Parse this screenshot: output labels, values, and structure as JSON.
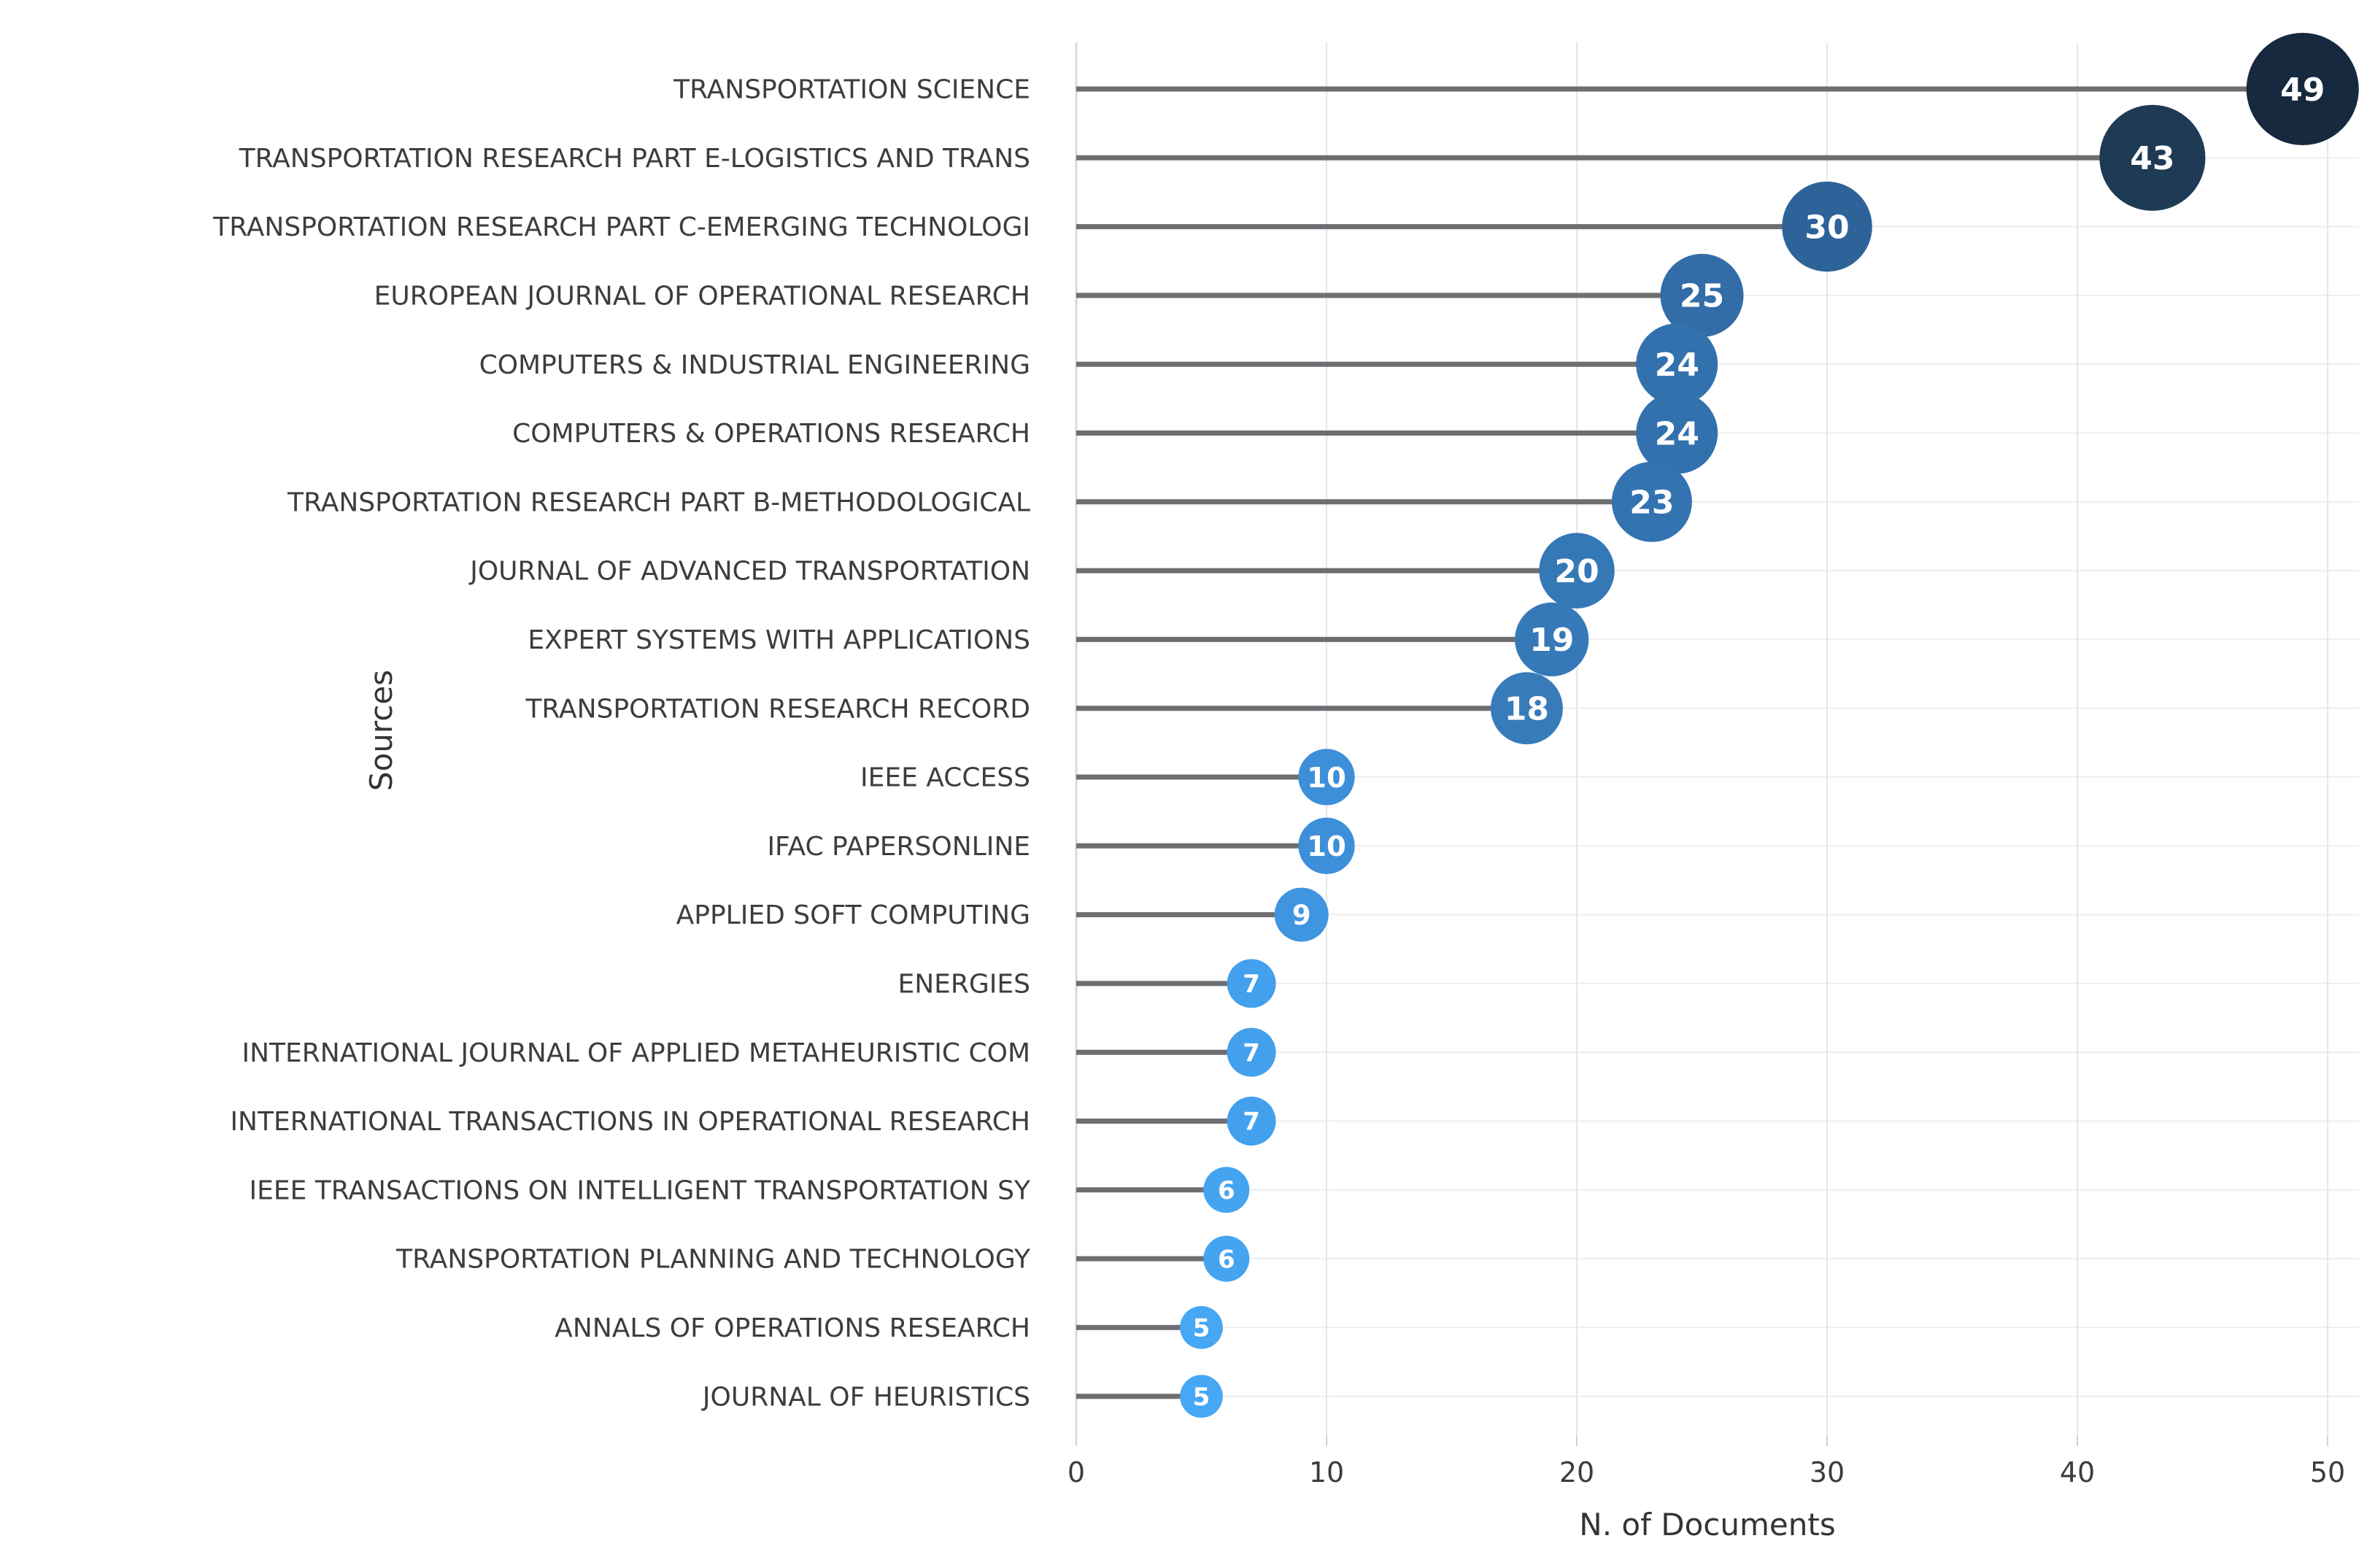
{
  "chart_data": {
    "type": "bar",
    "variant": "horizontal-lollipop-bubble",
    "title": "",
    "xlabel": "N. of Documents",
    "ylabel": "Sources",
    "xlim": [
      0,
      50
    ],
    "xticks": [
      0,
      10,
      20,
      30,
      40,
      50
    ],
    "grid": true,
    "legend": "none",
    "categories": [
      "TRANSPORTATION SCIENCE",
      "TRANSPORTATION RESEARCH PART E-LOGISTICS AND TRANS",
      "TRANSPORTATION RESEARCH PART C-EMERGING TECHNOLOGI",
      "EUROPEAN JOURNAL OF OPERATIONAL RESEARCH",
      "COMPUTERS & INDUSTRIAL ENGINEERING",
      "COMPUTERS & OPERATIONS RESEARCH",
      "TRANSPORTATION RESEARCH PART B-METHODOLOGICAL",
      "JOURNAL OF ADVANCED TRANSPORTATION",
      "EXPERT SYSTEMS WITH APPLICATIONS",
      "TRANSPORTATION RESEARCH RECORD",
      "IEEE ACCESS",
      "IFAC PAPERSONLINE",
      "APPLIED SOFT COMPUTING",
      "ENERGIES",
      "INTERNATIONAL JOURNAL OF APPLIED METAHEURISTIC COM",
      "INTERNATIONAL TRANSACTIONS IN OPERATIONAL RESEARCH",
      "IEEE TRANSACTIONS ON INTELLIGENT TRANSPORTATION SY",
      "TRANSPORTATION PLANNING AND TECHNOLOGY",
      "ANNALS OF OPERATIONS RESEARCH",
      "JOURNAL OF HEURISTICS"
    ],
    "values": [
      49,
      43,
      30,
      25,
      24,
      24,
      23,
      20,
      19,
      18,
      10,
      10,
      9,
      7,
      7,
      7,
      6,
      6,
      5,
      5
    ],
    "colors": [
      "#16293f",
      "#1e3a55",
      "#2d6399",
      "#326da7",
      "#3371ae",
      "#3371ae",
      "#3373b1",
      "#3578b6",
      "#3679b8",
      "#377bba",
      "#3d8fd9",
      "#3d8fd9",
      "#4095e1",
      "#43a0ec",
      "#43a0ec",
      "#43a0ec",
      "#45a4f0",
      "#45a4f0",
      "#46a7f4",
      "#46a7f4"
    ],
    "value_text_color": "#ffffff",
    "stem_color": "#6e6e72",
    "background": "#ffffff"
  }
}
